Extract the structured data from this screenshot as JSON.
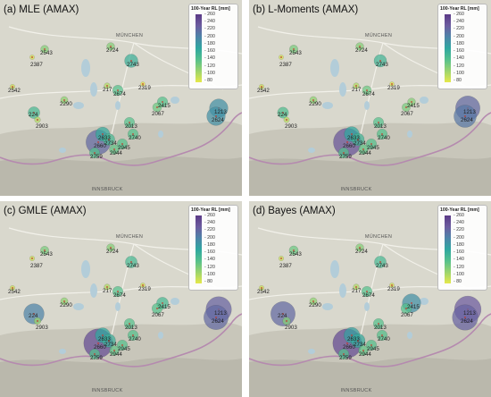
{
  "colors": {
    "terrain": "#d9d8cd",
    "mountain_dark": "#b9b8ac",
    "lake": "#b3cdd9",
    "border": "#b58aaf",
    "road": "#f2f1ea",
    "station_fill_low": "#e6e84a",
    "station_fill_high": "#5b3a86"
  },
  "map_labels": [
    "MÜNCHEN",
    "INNSBRUCK"
  ],
  "legend": {
    "title": "100-Year RL [mm]",
    "ticks": [
      "260",
      "240",
      "220",
      "200",
      "180",
      "160",
      "140",
      "120",
      "100",
      "80"
    ]
  },
  "panels": [
    {
      "title": "(a)  MLE (AMAX)",
      "stations": [
        {
          "id": "2543",
          "value": 130
        },
        {
          "id": "2387",
          "value": 90
        },
        {
          "id": "2724",
          "value": 130
        },
        {
          "id": "2743",
          "value": 170
        },
        {
          "id": "2542",
          "value": 95
        },
        {
          "id": "2290",
          "value": 125
        },
        {
          "id": "217",
          "value": 110
        },
        {
          "id": "2674",
          "value": 150
        },
        {
          "id": "2319",
          "value": 80
        },
        {
          "id": "2415",
          "value": 150
        },
        {
          "id": "2067",
          "value": 140
        },
        {
          "id": "224",
          "value": 160
        },
        {
          "id": "2903",
          "value": 110
        },
        {
          "id": "2013",
          "value": 150
        },
        {
          "id": "2633",
          "value": 175
        },
        {
          "id": "2660",
          "value": 230
        },
        {
          "id": "2734",
          "value": 160
        },
        {
          "id": "2740",
          "value": 150
        },
        {
          "id": "2945",
          "value": 150
        },
        {
          "id": "2944",
          "value": 145
        },
        {
          "id": "2759",
          "value": 150
        },
        {
          "id": "1213",
          "value": 200
        },
        {
          "id": "2624",
          "value": 200
        }
      ]
    },
    {
      "title": "(b)  L-Moments (AMAX)",
      "stations": [
        {
          "id": "2543",
          "value": 135
        },
        {
          "id": "2387",
          "value": 90
        },
        {
          "id": "2724",
          "value": 130
        },
        {
          "id": "2743",
          "value": 165
        },
        {
          "id": "2542",
          "value": 95
        },
        {
          "id": "2290",
          "value": 125
        },
        {
          "id": "217",
          "value": 110
        },
        {
          "id": "2674",
          "value": 140
        },
        {
          "id": "2319",
          "value": 85
        },
        {
          "id": "2415",
          "value": 130
        },
        {
          "id": "2067",
          "value": 135
        },
        {
          "id": "224",
          "value": 155
        },
        {
          "id": "2903",
          "value": 105
        },
        {
          "id": "2013",
          "value": 150
        },
        {
          "id": "2633",
          "value": 180
        },
        {
          "id": "2660",
          "value": 245
        },
        {
          "id": "2734",
          "value": 165
        },
        {
          "id": "2740",
          "value": 150
        },
        {
          "id": "2945",
          "value": 150
        },
        {
          "id": "2944",
          "value": 145
        },
        {
          "id": "2759",
          "value": 150
        },
        {
          "id": "1213",
          "value": 230
        },
        {
          "id": "2624",
          "value": 220
        }
      ]
    },
    {
      "title": "(c)  GMLE (AMAX)",
      "stations": [
        {
          "id": "2543",
          "value": 135
        },
        {
          "id": "2387",
          "value": 95
        },
        {
          "id": "2724",
          "value": 130
        },
        {
          "id": "2743",
          "value": 160
        },
        {
          "id": "2542",
          "value": 95
        },
        {
          "id": "2290",
          "value": 125
        },
        {
          "id": "217",
          "value": 110
        },
        {
          "id": "2674",
          "value": 150
        },
        {
          "id": "2319",
          "value": 90
        },
        {
          "id": "2415",
          "value": 160
        },
        {
          "id": "2067",
          "value": 150
        },
        {
          "id": "224",
          "value": 210
        },
        {
          "id": "2903",
          "value": 120
        },
        {
          "id": "2013",
          "value": 150
        },
        {
          "id": "2633",
          "value": 180
        },
        {
          "id": "2660",
          "value": 250
        },
        {
          "id": "2734",
          "value": 170
        },
        {
          "id": "2740",
          "value": 150
        },
        {
          "id": "2945",
          "value": 150
        },
        {
          "id": "2944",
          "value": 145
        },
        {
          "id": "2759",
          "value": 150
        },
        {
          "id": "1213",
          "value": 235
        },
        {
          "id": "2624",
          "value": 230
        }
      ]
    },
    {
      "title": "(d)  Bayes (AMAX)",
      "stations": [
        {
          "id": "2543",
          "value": 140
        },
        {
          "id": "2387",
          "value": 95
        },
        {
          "id": "2724",
          "value": 130
        },
        {
          "id": "2743",
          "value": 160
        },
        {
          "id": "2542",
          "value": 95
        },
        {
          "id": "2290",
          "value": 125
        },
        {
          "id": "217",
          "value": 110
        },
        {
          "id": "2674",
          "value": 150
        },
        {
          "id": "2319",
          "value": 90
        },
        {
          "id": "2415",
          "value": 200
        },
        {
          "id": "2067",
          "value": 150
        },
        {
          "id": "224",
          "value": 230
        },
        {
          "id": "2903",
          "value": 130
        },
        {
          "id": "2013",
          "value": 150
        },
        {
          "id": "2633",
          "value": 185
        },
        {
          "id": "2660",
          "value": 250
        },
        {
          "id": "2734",
          "value": 175
        },
        {
          "id": "2740",
          "value": 150
        },
        {
          "id": "2945",
          "value": 150
        },
        {
          "id": "2944",
          "value": 145
        },
        {
          "id": "2759",
          "value": 150
        },
        {
          "id": "1213",
          "value": 240
        },
        {
          "id": "2624",
          "value": 235
        }
      ]
    }
  ]
}
